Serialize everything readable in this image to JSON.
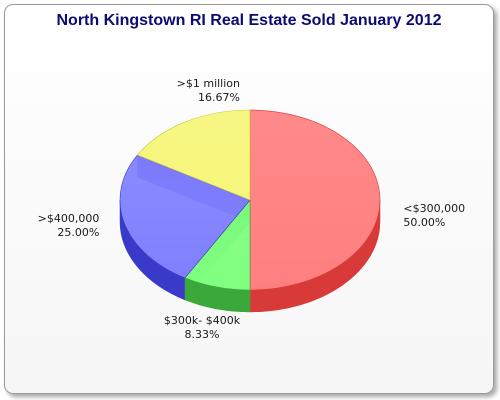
{
  "chart_data": {
    "type": "pie",
    "title": "North Kingstown RI Real Estate Sold January 2012",
    "slices": [
      {
        "label": "<$300,000",
        "value": 50.0,
        "percent_label": "50.00%",
        "color": "#ff7f7f",
        "side_color": "#d83a3a"
      },
      {
        "label": "$300k- $400k",
        "value": 8.33,
        "percent_label": "8.33%",
        "color": "#7fff7f",
        "side_color": "#3aa83a"
      },
      {
        "label": ">$400,000",
        "value": 25.0,
        "percent_label": "25.00%",
        "color": "#8080ff",
        "side_color": "#3a3ac8"
      },
      {
        "label": ">$1 million",
        "value": 16.67,
        "percent_label": "16.67%",
        "color": "#f6f67a",
        "side_color": "#c8c83a"
      }
    ],
    "legend": "none",
    "start_angle_deg": 90,
    "direction": "clockwise",
    "depth": "3d"
  }
}
